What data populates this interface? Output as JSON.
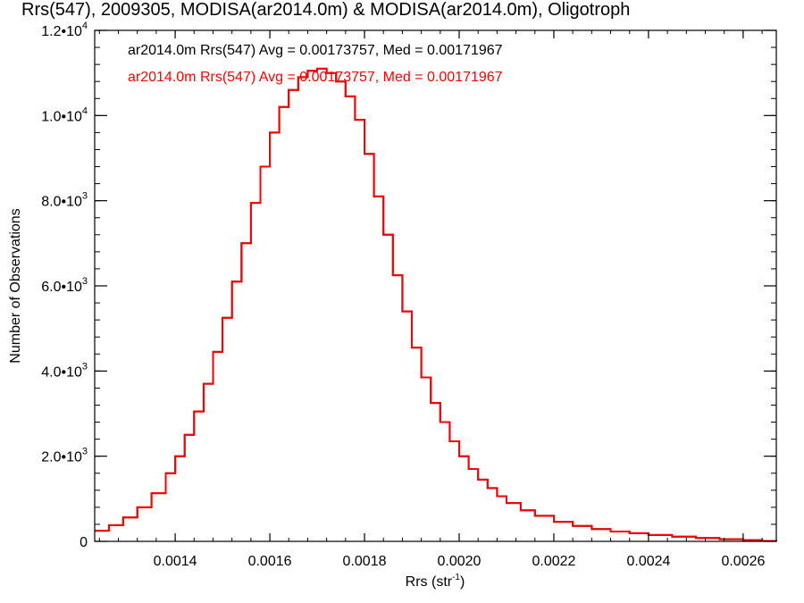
{
  "chart_data": {
    "type": "line",
    "title": "Rrs(547), 2009305, MODISA(ar2014.0m) & MODISA(ar2014.0m), Oligotroph",
    "xlabel": "Rrs (str",
    "xlabel_sup": "-1",
    "xlabel_tail": ")",
    "ylabel": "Number of Observations",
    "xlim": [
      0.00123,
      0.00267
    ],
    "ylim": [
      0,
      12000
    ],
    "x_ticks": [
      {
        "value": 0.0014,
        "label": "0.0014"
      },
      {
        "value": 0.0016,
        "label": "0.0016"
      },
      {
        "value": 0.0018,
        "label": "0.0018"
      },
      {
        "value": 0.002,
        "label": "0.0020"
      },
      {
        "value": 0.0022,
        "label": "0.0022"
      },
      {
        "value": 0.0024,
        "label": "0.0024"
      },
      {
        "value": 0.0026,
        "label": "0.0026"
      }
    ],
    "y_ticks": [
      {
        "value": 0,
        "mantissa": "0",
        "exp": ""
      },
      {
        "value": 2000,
        "mantissa": "2.0•10",
        "exp": "3"
      },
      {
        "value": 4000,
        "mantissa": "4.0•10",
        "exp": "3"
      },
      {
        "value": 6000,
        "mantissa": "6.0•10",
        "exp": "3"
      },
      {
        "value": 8000,
        "mantissa": "8.0•10",
        "exp": "3"
      },
      {
        "value": 10000,
        "mantissa": "1.0•10",
        "exp": "4"
      },
      {
        "value": 12000,
        "mantissa": "1.2•10",
        "exp": "4"
      }
    ],
    "annotations": [
      {
        "text": "ar2014.0m Rrs(547) Avg = 0.00173757, Med = 0.00171967",
        "color": "#000000"
      },
      {
        "text": "ar2014.0m Rrs(547) Avg = 0.00173757, Med = 0.00171967",
        "color": "#ff0000"
      }
    ],
    "series": [
      {
        "color": "#000000",
        "style": "step",
        "x": [
          0.00123,
          0.00126,
          0.00129,
          0.00132,
          0.00135,
          0.00138,
          0.0014,
          0.00142,
          0.00144,
          0.00146,
          0.00148,
          0.0015,
          0.00152,
          0.00154,
          0.00156,
          0.00158,
          0.0016,
          0.00162,
          0.00164,
          0.00166,
          0.00168,
          0.0017,
          0.00172,
          0.00174,
          0.00176,
          0.00178,
          0.0018,
          0.00182,
          0.00184,
          0.00186,
          0.00188,
          0.0019,
          0.00192,
          0.00194,
          0.00196,
          0.00198,
          0.002,
          0.00202,
          0.00204,
          0.00206,
          0.00208,
          0.0021,
          0.00213,
          0.00216,
          0.0022,
          0.00224,
          0.00228,
          0.00232,
          0.00236,
          0.0024,
          0.00245,
          0.0025,
          0.00255,
          0.0026,
          0.00264,
          0.00267
        ],
        "y": [
          250,
          380,
          560,
          800,
          1130,
          1600,
          2000,
          2500,
          3050,
          3700,
          4450,
          5250,
          6100,
          7000,
          7950,
          8800,
          9600,
          10200,
          10600,
          10900,
          11050,
          11100,
          11000,
          10800,
          10450,
          9900,
          9100,
          8100,
          7200,
          6250,
          5400,
          4550,
          3850,
          3250,
          2800,
          2350,
          2000,
          1700,
          1450,
          1250,
          1060,
          900,
          730,
          600,
          460,
          360,
          290,
          230,
          190,
          150,
          110,
          80,
          50,
          30,
          10,
          0
        ]
      },
      {
        "color": "#ff0000",
        "style": "step",
        "x": [
          0.00123,
          0.00126,
          0.00129,
          0.00132,
          0.00135,
          0.00138,
          0.0014,
          0.00142,
          0.00144,
          0.00146,
          0.00148,
          0.0015,
          0.00152,
          0.00154,
          0.00156,
          0.00158,
          0.0016,
          0.00162,
          0.00164,
          0.00166,
          0.00168,
          0.0017,
          0.00172,
          0.00174,
          0.00176,
          0.00178,
          0.0018,
          0.00182,
          0.00184,
          0.00186,
          0.00188,
          0.0019,
          0.00192,
          0.00194,
          0.00196,
          0.00198,
          0.002,
          0.00202,
          0.00204,
          0.00206,
          0.00208,
          0.0021,
          0.00213,
          0.00216,
          0.0022,
          0.00224,
          0.00228,
          0.00232,
          0.00236,
          0.0024,
          0.00245,
          0.0025,
          0.00255,
          0.0026,
          0.00264,
          0.00267
        ],
        "y": [
          250,
          380,
          560,
          800,
          1130,
          1600,
          2000,
          2500,
          3050,
          3700,
          4450,
          5250,
          6100,
          7000,
          7950,
          8800,
          9600,
          10200,
          10600,
          10900,
          11050,
          11100,
          11000,
          10800,
          10450,
          9900,
          9100,
          8100,
          7200,
          6250,
          5400,
          4550,
          3850,
          3250,
          2800,
          2350,
          2000,
          1700,
          1450,
          1250,
          1060,
          900,
          730,
          600,
          460,
          360,
          290,
          230,
          190,
          150,
          110,
          80,
          50,
          30,
          10,
          0
        ]
      }
    ],
    "grid": false,
    "legend": "none"
  }
}
